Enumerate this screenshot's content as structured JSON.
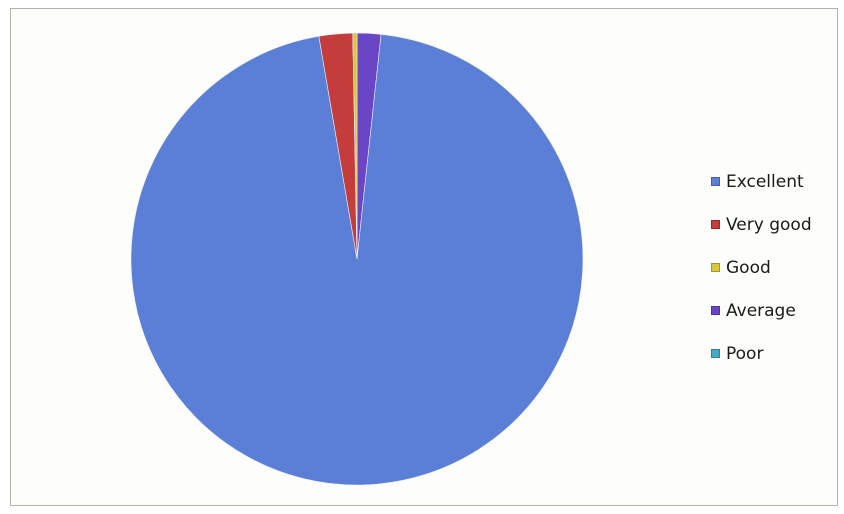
{
  "chart_data": {
    "type": "pie",
    "title": "",
    "legend_position": "right",
    "categories": [
      "Excellent",
      "Very good",
      "Good",
      "Average",
      "Poor"
    ],
    "values": [
      95.6,
      2.4,
      0.3,
      1.7,
      0
    ],
    "unit": "percent (estimated share of the pie)",
    "colors": [
      "#5b7fd6",
      "#c43c3c",
      "#d6c83a",
      "#6a46c6",
      "#46a9c9"
    ]
  }
}
